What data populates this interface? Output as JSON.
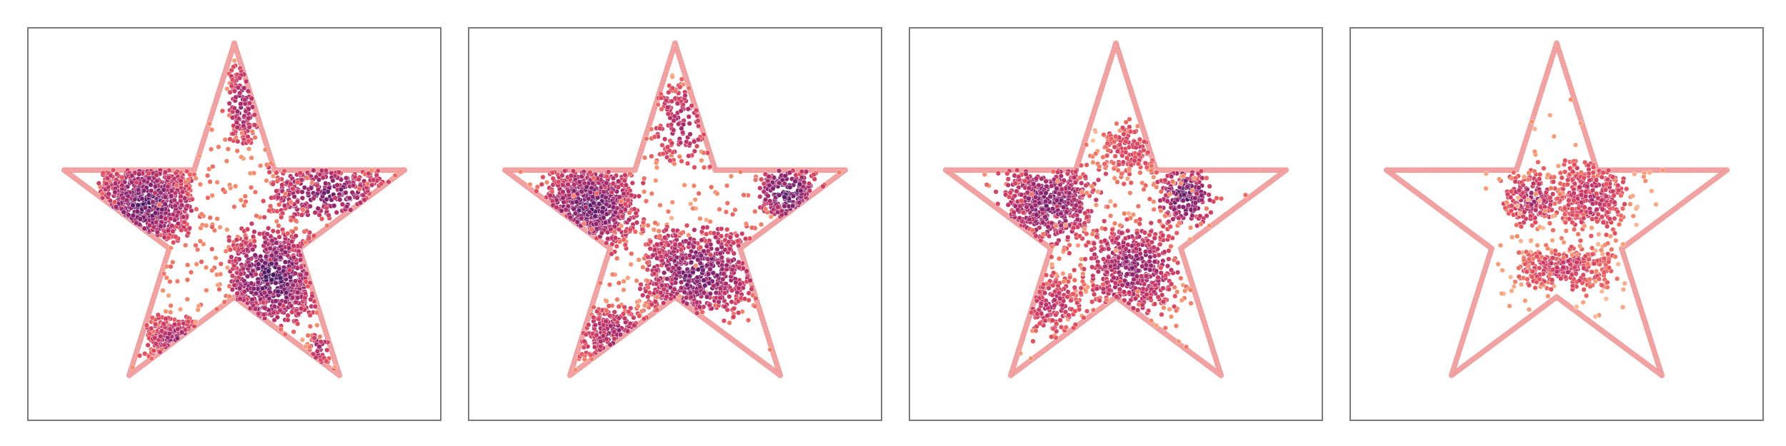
{
  "figure": {
    "colors": {
      "boundary": "#f4a6a6",
      "boundary_edge": "#ee8e8e",
      "colormap": [
        "#fcc39e",
        "#f98e6a",
        "#e9505c",
        "#c13367",
        "#8a236f",
        "#4e1b64",
        "#2a1250"
      ]
    }
  },
  "chart_data": [
    {
      "type": "scatter",
      "title": "",
      "xlabel": "",
      "ylabel": "",
      "xlim": [
        -1.15,
        1.15
      ],
      "ylim": [
        -1.05,
        1.08
      ],
      "grid": false,
      "boundary": {
        "shape": "star",
        "vertices": [
          [
            0.0,
            1.0
          ],
          [
            0.2245,
            0.309
          ],
          [
            0.9511,
            0.309
          ],
          [
            0.3633,
            -0.118
          ],
          [
            0.5878,
            -0.809
          ],
          [
            0.0,
            -0.382
          ],
          [
            -0.5878,
            -0.809
          ],
          [
            -0.3633,
            -0.118
          ],
          [
            -0.9511,
            0.309
          ],
          [
            -0.2245,
            0.309
          ]
        ]
      },
      "clusters": [
        {
          "x": [
            -0.72,
            -0.26
          ],
          "y": [
            -0.05,
            0.31
          ],
          "count": 760,
          "spread": 0.06,
          "intensity": 0.78
        },
        {
          "x": [
            -0.02,
            0.11
          ],
          "y": [
            0.45,
            0.88
          ],
          "count": 150,
          "spread": 0.04,
          "intensity": 0.62
        },
        {
          "x": [
            0.2,
            0.83
          ],
          "y": [
            0.05,
            0.31
          ],
          "count": 330,
          "spread": 0.05,
          "intensity": 0.72
        },
        {
          "x": [
            0.0,
            0.43
          ],
          "y": [
            -0.5,
            -0.05
          ],
          "count": 780,
          "spread": 0.06,
          "intensity": 0.8
        },
        {
          "x": [
            -0.47,
            -0.2
          ],
          "y": [
            -0.72,
            -0.5
          ],
          "count": 200,
          "spread": 0.04,
          "intensity": 0.6
        },
        {
          "x": [
            0.43,
            0.52
          ],
          "y": [
            -0.75,
            -0.58
          ],
          "count": 40,
          "spread": 0.03,
          "intensity": 0.55
        }
      ]
    },
    {
      "type": "scatter",
      "title": "",
      "xlabel": "",
      "ylabel": "",
      "xlim": [
        -1.15,
        1.15
      ],
      "ylim": [
        -1.05,
        1.08
      ],
      "grid": false,
      "boundary": {
        "shape": "star",
        "vertices": [
          [
            0.0,
            1.0
          ],
          [
            0.2245,
            0.309
          ],
          [
            0.9511,
            0.309
          ],
          [
            0.3633,
            -0.118
          ],
          [
            0.5878,
            -0.809
          ],
          [
            0.0,
            -0.382
          ],
          [
            -0.5878,
            -0.809
          ],
          [
            -0.3633,
            -0.118
          ],
          [
            -0.9511,
            0.309
          ],
          [
            -0.2245,
            0.309
          ]
        ]
      },
      "clusters": [
        {
          "x": [
            -0.69,
            -0.25
          ],
          "y": [
            -0.05,
            0.28
          ],
          "count": 700,
          "spread": 0.09,
          "intensity": 0.75
        },
        {
          "x": [
            -0.1,
            0.18
          ],
          "y": [
            0.35,
            0.78
          ],
          "count": 160,
          "spread": 0.06,
          "intensity": 0.55
        },
        {
          "x": [
            0.5,
            0.75
          ],
          "y": [
            0.08,
            0.3
          ],
          "count": 230,
          "spread": 0.06,
          "intensity": 0.82
        },
        {
          "x": [
            -0.15,
            0.4
          ],
          "y": [
            -0.45,
            -0.05
          ],
          "count": 720,
          "spread": 0.09,
          "intensity": 0.72
        },
        {
          "x": [
            -0.5,
            -0.2
          ],
          "y": [
            -0.72,
            -0.45
          ],
          "count": 190,
          "spread": 0.06,
          "intensity": 0.6
        }
      ]
    },
    {
      "type": "scatter",
      "title": "",
      "xlabel": "",
      "ylabel": "",
      "xlim": [
        -1.15,
        1.15
      ],
      "ylim": [
        -1.05,
        1.08
      ],
      "grid": false,
      "boundary": {
        "shape": "star",
        "vertices": [
          [
            0.0,
            1.0
          ],
          [
            0.2245,
            0.309
          ],
          [
            0.9511,
            0.309
          ],
          [
            0.3633,
            -0.118
          ],
          [
            0.5878,
            -0.809
          ],
          [
            0.0,
            -0.382
          ],
          [
            -0.5878,
            -0.809
          ],
          [
            -0.3633,
            -0.118
          ],
          [
            -0.9511,
            0.309
          ],
          [
            -0.2245,
            0.309
          ]
        ]
      },
      "clusters": [
        {
          "x": [
            -0.58,
            -0.18
          ],
          "y": [
            -0.02,
            0.28
          ],
          "count": 550,
          "spread": 0.13,
          "intensity": 0.68
        },
        {
          "x": [
            -0.04,
            0.2
          ],
          "y": [
            0.3,
            0.55
          ],
          "count": 150,
          "spread": 0.1,
          "intensity": 0.4
        },
        {
          "x": [
            0.28,
            0.5
          ],
          "y": [
            0.05,
            0.28
          ],
          "count": 200,
          "spread": 0.07,
          "intensity": 0.78
        },
        {
          "x": [
            -0.1,
            0.28
          ],
          "y": [
            -0.4,
            -0.05
          ],
          "count": 560,
          "spread": 0.12,
          "intensity": 0.65
        },
        {
          "x": [
            -0.5,
            -0.22
          ],
          "y": [
            -0.55,
            -0.3
          ],
          "count": 170,
          "spread": 0.08,
          "intensity": 0.5
        }
      ]
    },
    {
      "type": "scatter",
      "title": "",
      "xlabel": "",
      "ylabel": "",
      "xlim": [
        -1.15,
        1.15
      ],
      "ylim": [
        -1.05,
        1.08
      ],
      "grid": false,
      "boundary": {
        "shape": "star",
        "vertices": [
          [
            0.0,
            1.0
          ],
          [
            0.2245,
            0.309
          ],
          [
            0.9511,
            0.309
          ],
          [
            0.3633,
            -0.118
          ],
          [
            0.5878,
            -0.809
          ],
          [
            0.0,
            -0.382
          ],
          [
            -0.5878,
            -0.809
          ],
          [
            -0.3633,
            -0.118
          ],
          [
            -0.9511,
            0.309
          ],
          [
            -0.2245,
            0.309
          ]
        ]
      },
      "clusters": [
        {
          "x": [
            -0.25,
            -0.02
          ],
          "y": [
            0.05,
            0.25
          ],
          "count": 220,
          "spread": 0.08,
          "intensity": 0.55
        },
        {
          "x": [
            0.05,
            0.35
          ],
          "y": [
            0.02,
            0.32
          ],
          "count": 380,
          "spread": 0.09,
          "intensity": 0.5
        },
        {
          "x": [
            -0.2,
            0.3
          ],
          "y": [
            -0.3,
            -0.15
          ],
          "count": 330,
          "spread": 0.07,
          "intensity": 0.45
        }
      ]
    }
  ]
}
